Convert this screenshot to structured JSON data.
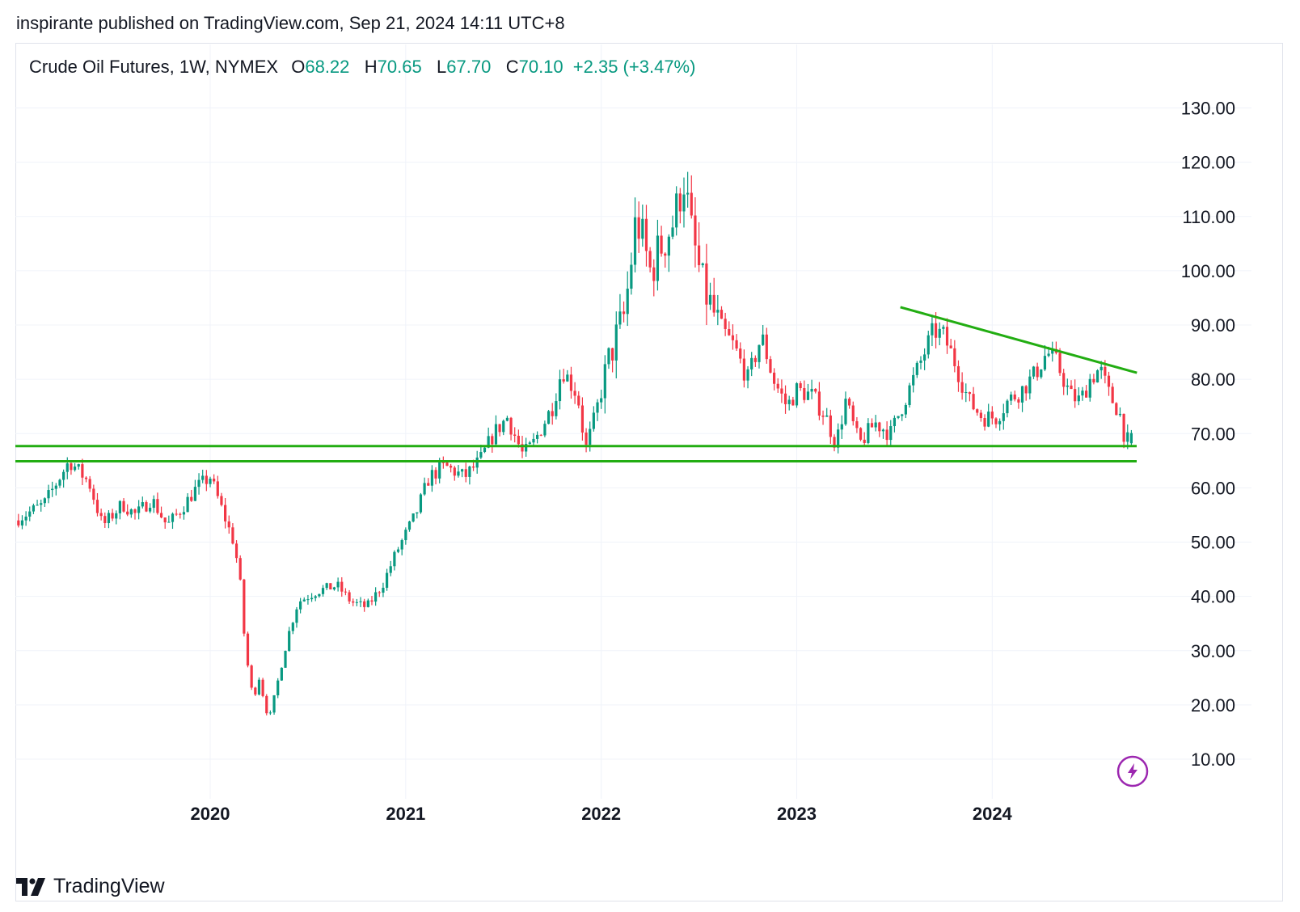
{
  "header": {
    "published_line": "inspirante published on TradingView.com, Sep 21, 2024 14:11 UTC+8"
  },
  "legend": {
    "symbol": "Crude Oil Futures, 1W, NYMEX",
    "open_label": "O",
    "open": "68.22",
    "high_label": "H",
    "high": "70.65",
    "low_label": "L",
    "low": "67.70",
    "close_label": "C",
    "close": "70.10",
    "change": "+2.35 (+3.47%)"
  },
  "footer": {
    "brand": "TradingView",
    "icon": "tradingview-logo-icon"
  },
  "colors": {
    "up": "#089981",
    "down": "#f23645",
    "drawing": "#22ad12",
    "accent": "#9c27b0"
  },
  "chart_data": {
    "type": "candlestick",
    "title": "Crude Oil Futures, 1W, NYMEX",
    "xlabel": "",
    "ylabel": "",
    "ylim": [
      3.0,
      135.0
    ],
    "yticks": [
      "130.00",
      "120.00",
      "110.00",
      "100.00",
      "90.00",
      "80.00",
      "70.00",
      "60.00",
      "50.00",
      "40.00",
      "30.00",
      "20.00",
      "10.00"
    ],
    "xticks": [
      "2020",
      "2021",
      "2022",
      "2023",
      "2024"
    ],
    "grid": true,
    "price_path": [
      [
        2019.0,
        54
      ],
      [
        2019.15,
        57
      ],
      [
        2019.28,
        65
      ],
      [
        2019.38,
        61
      ],
      [
        2019.45,
        53
      ],
      [
        2019.55,
        57
      ],
      [
        2019.62,
        55
      ],
      [
        2019.7,
        58
      ],
      [
        2019.78,
        53
      ],
      [
        2019.85,
        56
      ],
      [
        2019.93,
        60
      ],
      [
        2020.0,
        62
      ],
      [
        2020.05,
        57
      ],
      [
        2020.12,
        50
      ],
      [
        2020.15,
        44
      ],
      [
        2020.18,
        30
      ],
      [
        2020.22,
        21
      ],
      [
        2020.25,
        25
      ],
      [
        2020.3,
        17
      ],
      [
        2020.35,
        25
      ],
      [
        2020.4,
        33
      ],
      [
        2020.45,
        39
      ],
      [
        2020.55,
        41
      ],
      [
        2020.65,
        42
      ],
      [
        2020.72,
        39
      ],
      [
        2020.8,
        38
      ],
      [
        2020.88,
        42
      ],
      [
        2020.95,
        48
      ],
      [
        2021.05,
        55
      ],
      [
        2021.12,
        62
      ],
      [
        2021.2,
        64
      ],
      [
        2021.3,
        62
      ],
      [
        2021.38,
        65
      ],
      [
        2021.45,
        70
      ],
      [
        2021.52,
        73
      ],
      [
        2021.6,
        66
      ],
      [
        2021.65,
        68
      ],
      [
        2021.75,
        75
      ],
      [
        2021.8,
        82
      ],
      [
        2021.88,
        77
      ],
      [
        2021.92,
        67
      ],
      [
        2021.96,
        72
      ],
      [
        2022.05,
        85
      ],
      [
        2022.12,
        92
      ],
      [
        2022.18,
        110
      ],
      [
        2022.25,
        100
      ],
      [
        2022.3,
        104
      ],
      [
        2022.38,
        110
      ],
      [
        2022.42,
        118
      ],
      [
        2022.46,
        107
      ],
      [
        2022.52,
        97
      ],
      [
        2022.6,
        90
      ],
      [
        2022.68,
        86
      ],
      [
        2022.75,
        80
      ],
      [
        2022.82,
        88
      ],
      [
        2022.88,
        80
      ],
      [
        2022.95,
        75
      ],
      [
        2023.0,
        78
      ],
      [
        2023.08,
        77
      ],
      [
        2023.15,
        73
      ],
      [
        2023.2,
        68
      ],
      [
        2023.25,
        76
      ],
      [
        2023.32,
        68
      ],
      [
        2023.4,
        72
      ],
      [
        2023.48,
        70
      ],
      [
        2023.55,
        76
      ],
      [
        2023.62,
        82
      ],
      [
        2023.7,
        89
      ],
      [
        2023.75,
        88
      ],
      [
        2023.8,
        84
      ],
      [
        2023.88,
        76
      ],
      [
        2023.95,
        73
      ],
      [
        2024.02,
        73
      ],
      [
        2024.08,
        76
      ],
      [
        2024.15,
        78
      ],
      [
        2024.22,
        81
      ],
      [
        2024.28,
        85
      ],
      [
        2024.33,
        83
      ],
      [
        2024.4,
        77
      ],
      [
        2024.45,
        76
      ],
      [
        2024.5,
        80
      ],
      [
        2024.55,
        82
      ],
      [
        2024.6,
        77
      ],
      [
        2024.65,
        74
      ],
      [
        2024.68,
        69
      ],
      [
        2024.7,
        68.5
      ],
      [
        2024.72,
        70.1
      ]
    ],
    "annotations": [
      {
        "type": "horizontal_line",
        "price": 67.7
      },
      {
        "type": "horizontal_line",
        "price": 64.9
      },
      {
        "type": "trend_line",
        "from": [
          2023.53,
          93.3
        ],
        "to": [
          2024.74,
          81.2
        ]
      }
    ]
  }
}
